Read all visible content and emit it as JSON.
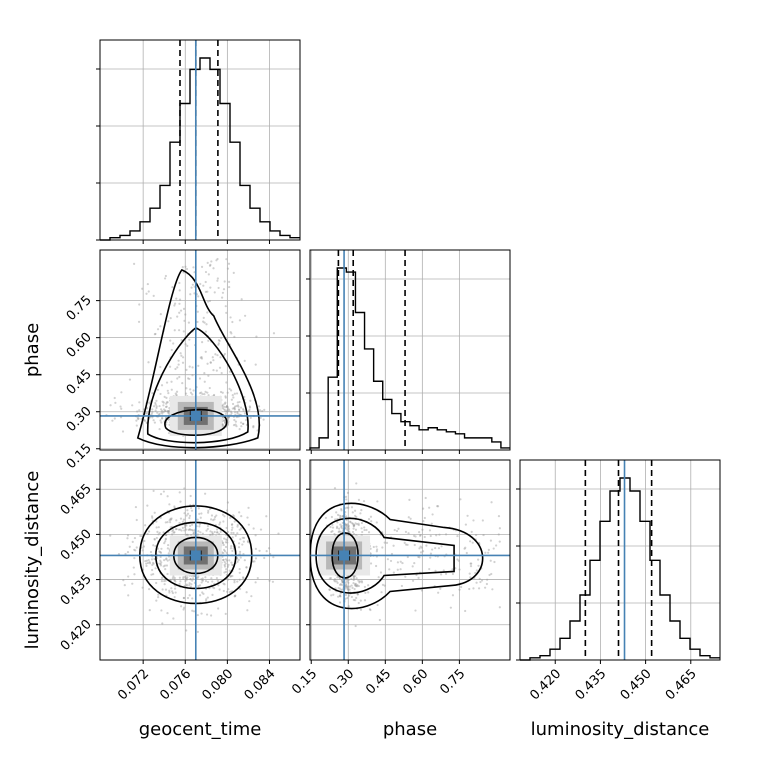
{
  "chart_data": {
    "type": "corner",
    "parameters": [
      "geocent_time",
      "phase",
      "luminosity_distance"
    ],
    "truths": {
      "geocent_time": 0.077,
      "phase": 0.283,
      "luminosity_distance": 0.443
    },
    "quantiles": {
      "geocent_time": [
        0.0755,
        0.077,
        0.0791
      ],
      "phase": [
        0.26,
        0.32,
        0.53
      ],
      "luminosity_distance": [
        0.43,
        0.441,
        0.452
      ]
    },
    "axes": {
      "geocent_time": {
        "range": [
          0.0679,
          0.0869
        ],
        "ticks": [
          "0.072",
          "0.076",
          "0.080",
          "0.084"
        ]
      },
      "phase": {
        "range": [
          0.145,
          0.955
        ],
        "ticks": [
          "0.15",
          "0.30",
          "0.45",
          "0.60",
          "0.75"
        ]
      },
      "luminosity_distance": {
        "range": [
          0.4083,
          0.4747
        ],
        "ticks": [
          "0.420",
          "0.435",
          "0.450",
          "0.465"
        ]
      }
    },
    "marginals": {
      "geocent_time": {
        "bins": [
          0.0679,
          0.0869
        ],
        "counts": [
          0,
          1,
          2,
          4,
          8,
          14,
          24,
          43,
          60,
          75,
          80,
          75,
          60,
          43,
          24,
          14,
          8,
          4,
          2,
          1
        ]
      },
      "phase": {
        "bins": [
          0.145,
          0.955
        ],
        "counts": [
          1,
          6,
          36,
          90,
          88,
          68,
          50,
          34,
          25,
          18,
          14,
          12,
          10,
          11,
          10,
          9,
          8,
          6,
          6,
          6,
          4,
          1
        ]
      },
      "luminosity_distance": {
        "bins": [
          0.4083,
          0.4747
        ],
        "counts": [
          0,
          1,
          2,
          5,
          10,
          18,
          30,
          46,
          64,
          78,
          84,
          78,
          64,
          46,
          30,
          18,
          10,
          5,
          2,
          1
        ]
      }
    },
    "grid": true
  }
}
